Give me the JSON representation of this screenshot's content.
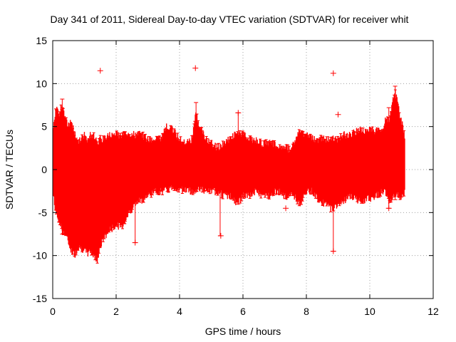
{
  "chart_data": {
    "type": "scatter",
    "title": "Day 341 of 2011, Sidereal Day-to-day VTEC variation (SDTVAR) for receiver whit",
    "xlabel": "GPS time / hours",
    "ylabel": "SDTVAR / TECUs",
    "xlim": [
      0,
      12
    ],
    "ylim": [
      -15,
      15
    ],
    "xticks": [
      0,
      2,
      4,
      6,
      8,
      10,
      12
    ],
    "yticks": [
      -15,
      -10,
      -5,
      0,
      5,
      10,
      15
    ],
    "grid": true,
    "series_color": "#ff0000",
    "envelope": {
      "name": "SDTVAR error-bar band",
      "x": [
        0.0,
        0.1,
        0.2,
        0.3,
        0.4,
        0.5,
        0.6,
        0.7,
        0.8,
        0.9,
        1.0,
        1.1,
        1.2,
        1.3,
        1.4,
        1.5,
        1.6,
        1.8,
        2.0,
        2.2,
        2.4,
        2.6,
        2.8,
        3.0,
        3.2,
        3.4,
        3.5,
        3.6,
        3.8,
        4.0,
        4.2,
        4.4,
        4.5,
        4.6,
        4.8,
        5.0,
        5.2,
        5.4,
        5.6,
        5.8,
        6.0,
        6.2,
        6.4,
        6.6,
        6.8,
        7.0,
        7.2,
        7.4,
        7.5,
        7.6,
        7.8,
        8.0,
        8.2,
        8.4,
        8.6,
        8.8,
        9.0,
        9.2,
        9.4,
        9.6,
        9.8,
        10.0,
        10.2,
        10.4,
        10.5,
        10.6,
        10.8,
        11.0,
        11.1
      ],
      "upper": [
        4.5,
        7.5,
        7.0,
        8.0,
        6.5,
        5.5,
        6.0,
        4.5,
        3.5,
        4.0,
        4.5,
        4.0,
        4.5,
        4.5,
        3.5,
        4.0,
        4.0,
        4.5,
        4.5,
        4.5,
        4.5,
        4.5,
        4.5,
        4.0,
        4.0,
        4.0,
        5.0,
        5.5,
        5.0,
        4.0,
        3.5,
        4.0,
        7.0,
        6.0,
        4.0,
        3.5,
        3.0,
        3.5,
        4.0,
        4.8,
        4.5,
        4.0,
        3.8,
        3.5,
        3.5,
        3.5,
        3.0,
        3.0,
        2.5,
        3.5,
        5.0,
        4.5,
        4.0,
        4.0,
        4.0,
        4.0,
        4.0,
        4.5,
        4.5,
        5.0,
        5.0,
        5.0,
        5.0,
        5.0,
        6.5,
        6.0,
        9.5,
        6.0,
        4.5
      ],
      "lower": [
        -3.0,
        -5.5,
        -6.5,
        -7.5,
        -8.0,
        -9.0,
        -10.0,
        -10.3,
        -9.5,
        -9.5,
        -10.0,
        -10.2,
        -10.0,
        -10.5,
        -11.0,
        -9.5,
        -8.5,
        -7.5,
        -7.0,
        -7.0,
        -5.5,
        -4.5,
        -4.0,
        -3.5,
        -3.0,
        -3.0,
        -3.0,
        -2.8,
        -2.5,
        -2.8,
        -2.8,
        -3.0,
        -3.0,
        -2.5,
        -3.0,
        -3.0,
        -3.0,
        -3.5,
        -3.5,
        -4.5,
        -3.5,
        -3.5,
        -3.0,
        -3.5,
        -3.5,
        -3.0,
        -3.0,
        -4.0,
        -3.0,
        -3.5,
        -4.5,
        -3.0,
        -3.0,
        -4.0,
        -4.5,
        -5.0,
        -4.5,
        -4.0,
        -3.5,
        -4.0,
        -4.0,
        -3.8,
        -3.5,
        -3.0,
        -3.0,
        -4.0,
        -3.5,
        -3.5,
        -3.0
      ]
    },
    "outliers": [
      {
        "x": 1.5,
        "y": 11.5
      },
      {
        "x": 4.5,
        "y": 11.8
      },
      {
        "x": 8.85,
        "y": 11.2
      },
      {
        "x": 9.0,
        "y": 6.4
      },
      {
        "x": 5.85,
        "y": 6.6
      },
      {
        "x": 7.35,
        "y": -4.5
      },
      {
        "x": 5.3,
        "y": -7.7
      },
      {
        "x": 8.85,
        "y": -9.5
      },
      {
        "x": 2.6,
        "y": -8.5
      },
      {
        "x": 10.6,
        "y": -4.5
      }
    ],
    "spikes": [
      {
        "x": 4.52,
        "low": -2.5,
        "high": 7.8
      },
      {
        "x": 5.28,
        "low": -7.7,
        "high": 2.0
      },
      {
        "x": 5.85,
        "low": -4.0,
        "high": 6.6
      },
      {
        "x": 8.85,
        "low": -9.5,
        "high": 3.0
      },
      {
        "x": 10.8,
        "low": -3.5,
        "high": 9.7
      },
      {
        "x": 10.6,
        "low": -4.5,
        "high": 7.2
      },
      {
        "x": 2.6,
        "low": -8.5,
        "high": 3.5
      },
      {
        "x": 0.3,
        "low": -7.5,
        "high": 8.2
      }
    ]
  }
}
